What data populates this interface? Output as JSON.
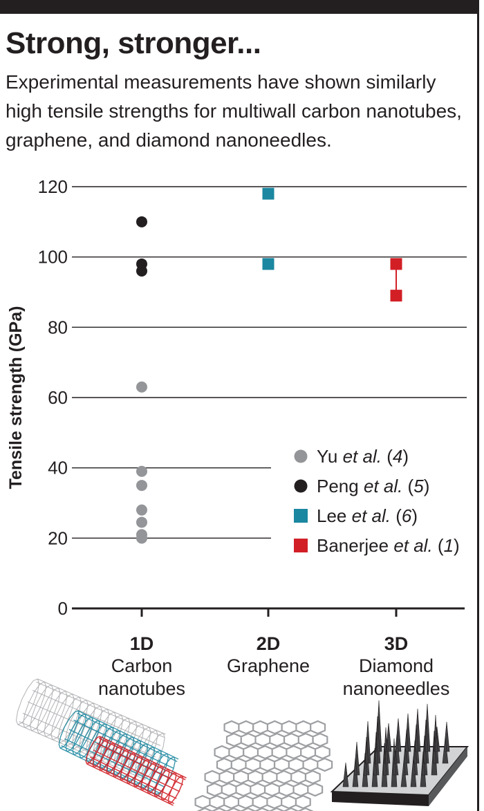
{
  "header": {
    "title": "Strong, stronger...",
    "subtitle": "Experimental measurements have shown similarly high tensile strengths for multiwall carbon nanotubes, graphene, and diamond nanoneedles."
  },
  "chart_data": {
    "type": "scatter",
    "title": "Strong, stronger...",
    "ylabel": "Tensile strength (GPa)",
    "ylim": [
      0,
      120
    ],
    "yticks": [
      0,
      20,
      40,
      60,
      80,
      100,
      120
    ],
    "categories": [
      {
        "key": "1D",
        "label": "1D",
        "sublabel": [
          "Carbon",
          "nanotubes"
        ]
      },
      {
        "key": "2D",
        "label": "2D",
        "sublabel": [
          "Graphene"
        ]
      },
      {
        "key": "3D",
        "label": "3D",
        "sublabel": [
          "Diamond",
          "nanoneedles"
        ]
      }
    ],
    "series": [
      {
        "name": "Yu et al. (4)",
        "legend": {
          "pre": "Yu ",
          "ital": "et al.",
          "post": " (",
          "ref": "4",
          "end": ")"
        },
        "color": "#939598",
        "marker": "circle",
        "points": [
          {
            "x": "1D",
            "y": 63
          },
          {
            "x": "1D",
            "y": 39
          },
          {
            "x": "1D",
            "y": 35
          },
          {
            "x": "1D",
            "y": 28
          },
          {
            "x": "1D",
            "y": 24.5
          },
          {
            "x": "1D",
            "y": 21
          },
          {
            "x": "1D",
            "y": 20
          }
        ]
      },
      {
        "name": "Peng et al. (5)",
        "legend": {
          "pre": "Peng ",
          "ital": "et al.",
          "post": " (",
          "ref": "5",
          "end": ")"
        },
        "color": "#231f20",
        "marker": "circle",
        "points": [
          {
            "x": "1D",
            "y": 110
          },
          {
            "x": "1D",
            "y": 98
          },
          {
            "x": "1D",
            "y": 96
          }
        ]
      },
      {
        "name": "Lee et al. (6)",
        "legend": {
          "pre": "Lee ",
          "ital": "et al.",
          "post": " (",
          "ref": "6",
          "end": ")"
        },
        "color": "#1b87a0",
        "marker": "square",
        "points": [
          {
            "x": "2D",
            "y": 118
          },
          {
            "x": "2D",
            "y": 98
          }
        ]
      },
      {
        "name": "Banerjee et al. (1)",
        "legend": {
          "pre": "Banerjee ",
          "ital": "et al.",
          "post": " (",
          "ref": "1",
          "end": ")"
        },
        "color": "#d21f26",
        "marker": "square",
        "connected": true,
        "points": [
          {
            "x": "3D",
            "y": 98
          },
          {
            "x": "3D",
            "y": 89
          }
        ]
      }
    ],
    "grid": true,
    "legend_position": "lower-right"
  },
  "colors": {
    "text": "#231f20",
    "grid": "#231f20",
    "cnt_gray": "#a7a9ac",
    "cnt_teal": "#1b87a0",
    "cnt_red": "#d21f26"
  },
  "illustrations": [
    {
      "name": "carbon-nanotube-illustration"
    },
    {
      "name": "graphene-sheet-illustration"
    },
    {
      "name": "diamond-nanoneedles-illustration"
    }
  ]
}
